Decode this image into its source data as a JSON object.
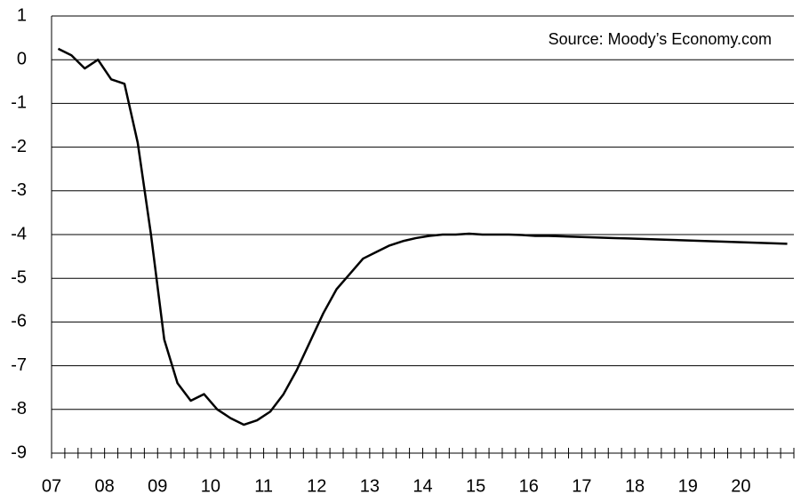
{
  "chart_data": {
    "type": "line",
    "annotation": "Source: Moody’s Economy.com",
    "categories": [
      "07",
      null,
      null,
      null,
      "08",
      null,
      null,
      null,
      "09",
      null,
      null,
      null,
      "10",
      null,
      null,
      null,
      "11",
      null,
      null,
      null,
      "12",
      null,
      null,
      null,
      "13",
      null,
      null,
      null,
      "14",
      null,
      null,
      null,
      "15",
      null,
      null,
      null,
      "16",
      null,
      null,
      null,
      "17",
      null,
      null,
      null,
      "18",
      null,
      null,
      null,
      "19",
      null,
      null,
      null,
      "20",
      null,
      null,
      null
    ],
    "series": [
      {
        "color": "#000000",
        "values": [
          0.25,
          0.1,
          -0.2,
          0.0,
          -0.45,
          -0.55,
          -1.9,
          -4.0,
          -6.4,
          -7.4,
          -7.8,
          -7.65,
          -8.0,
          -8.2,
          -8.35,
          -8.25,
          -8.05,
          -7.65,
          -7.1,
          -6.45,
          -5.8,
          -5.25,
          -4.9,
          -4.55,
          -4.4,
          -4.25,
          -4.15,
          -4.08,
          -4.03,
          -4.0,
          -4.0,
          -3.98,
          -4.0,
          -4.0,
          -4.0,
          -4.01,
          -4.03,
          -4.03,
          -4.04,
          -4.05,
          -4.06,
          -4.07,
          -4.08,
          -4.09,
          -4.1,
          -4.11,
          -4.12,
          -4.13,
          -4.14,
          -4.15,
          -4.16,
          -4.17,
          -4.18,
          -4.19,
          -4.2,
          -4.21
        ]
      }
    ],
    "ylim": [
      -9,
      1
    ],
    "yticks": [
      -9,
      -8,
      -7,
      -6,
      -5,
      -4,
      -3,
      -2,
      -1,
      0,
      1
    ],
    "grid": true
  }
}
